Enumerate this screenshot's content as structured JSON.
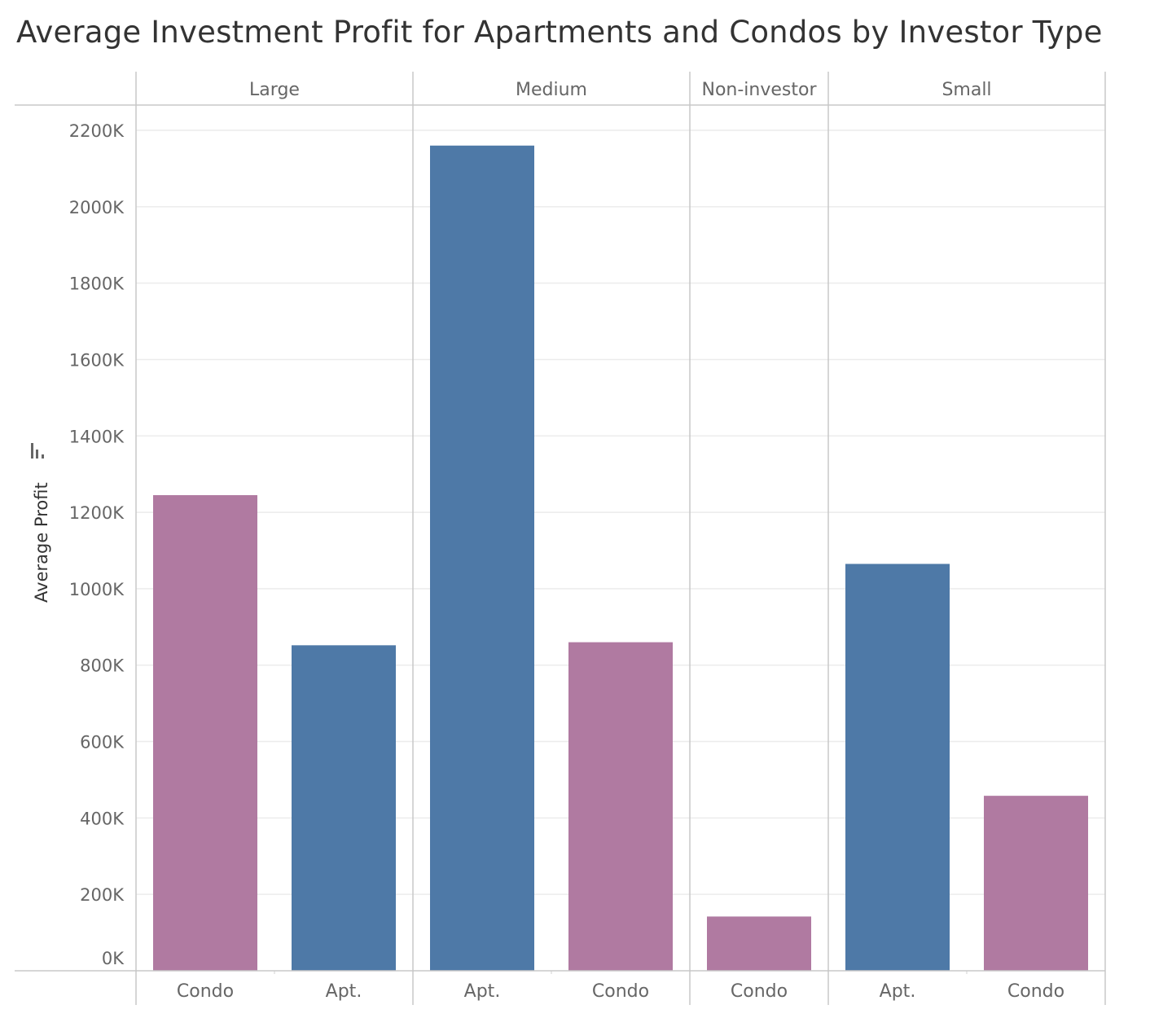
{
  "chart_data": {
    "type": "bar",
    "title": "Average Investment Profit for Apartments and Condos by Investor Type",
    "ylabel": "Average Profit",
    "xlabel": "",
    "ylim": [
      0,
      2260000
    ],
    "yticks": [
      0,
      200000,
      400000,
      600000,
      800000,
      1000000,
      1200000,
      1400000,
      1600000,
      1800000,
      2000000,
      2200000
    ],
    "ytick_labels": [
      "0K",
      "200K",
      "400K",
      "600K",
      "800K",
      "1000K",
      "1200K",
      "1400K",
      "1600K",
      "1800K",
      "2000K",
      "2200K"
    ],
    "grid": true,
    "legend": "none",
    "colors": {
      "Condo": "#b07aa1",
      "Apt.": "#4e79a7"
    },
    "panels": [
      {
        "name": "Large",
        "bars": [
          {
            "category": "Condo",
            "value": 1245000
          },
          {
            "category": "Apt.",
            "value": 852000
          }
        ]
      },
      {
        "name": "Medium",
        "bars": [
          {
            "category": "Apt.",
            "value": 2160000
          },
          {
            "category": "Condo",
            "value": 860000
          }
        ]
      },
      {
        "name": "Non-investor",
        "bars": [
          {
            "category": "Condo",
            "value": 142000
          }
        ]
      },
      {
        "name": "Small",
        "bars": [
          {
            "category": "Apt.",
            "value": 1065000
          },
          {
            "category": "Condo",
            "value": 458000
          }
        ]
      }
    ]
  }
}
